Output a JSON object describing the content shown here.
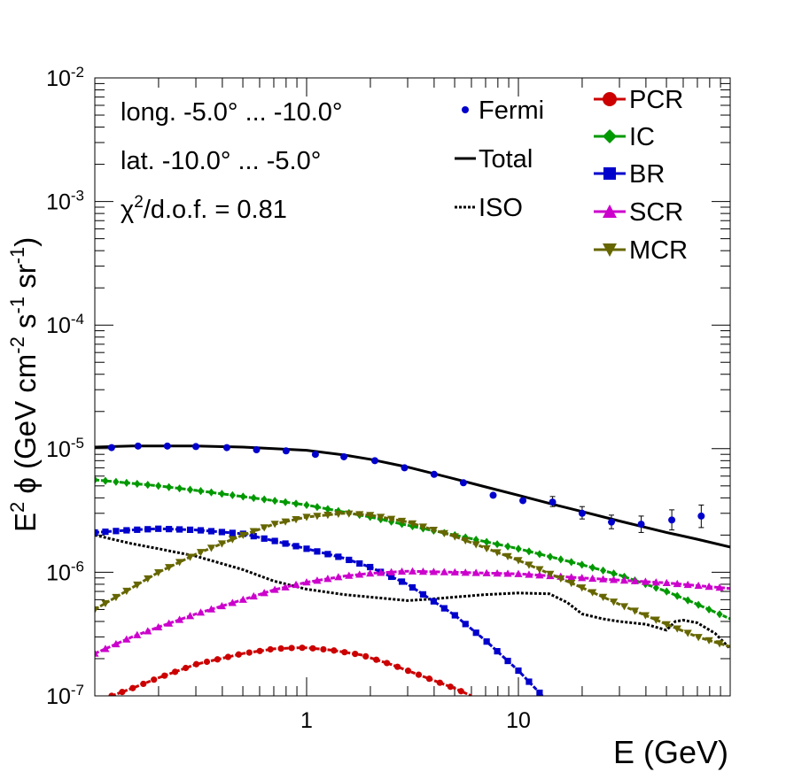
{
  "chart_data": {
    "type": "scatter",
    "title": "",
    "xlabel": "E (GeV)",
    "ylabel_parts": {
      "e": "E",
      "sq": "2",
      "phi": " ϕ (GeV cm",
      "m2": "-2",
      "s": " s",
      "m1a": "-1",
      "sr": " sr",
      "m1b": "-1",
      "close": ")"
    },
    "xscale": "log",
    "yscale": "log",
    "xlim": [
      0.1,
      100
    ],
    "ylim": [
      1e-07,
      0.01
    ],
    "x_ticks": [
      {
        "value": 1,
        "label": "1"
      },
      {
        "value": 10,
        "label": "10"
      }
    ],
    "y_ticks": [
      {
        "value": 1e-07,
        "base": "10",
        "exp": "-7"
      },
      {
        "value": 1e-06,
        "base": "10",
        "exp": "-6"
      },
      {
        "value": 1e-05,
        "base": "10",
        "exp": "-5"
      },
      {
        "value": 0.0001,
        "base": "10",
        "exp": "-4"
      },
      {
        "value": 0.001,
        "base": "10",
        "exp": "-3"
      },
      {
        "value": 0.01,
        "base": "10",
        "exp": "-2"
      }
    ],
    "annotations": {
      "region_long": "long. -5.0° ... -10.0°",
      "region_lat": "lat. -10.0° ... -5.0°",
      "chi_symbol": "χ",
      "chi_exp": "2",
      "chi_rest": "/d.o.f. = 0.81"
    },
    "legend_left": [
      {
        "key": "fermi",
        "label": "Fermi",
        "marker": "dot",
        "color": "#0000cc"
      },
      {
        "key": "total",
        "label": "Total",
        "marker": "solid-line",
        "color": "#000000"
      },
      {
        "key": "iso",
        "label": "ISO",
        "marker": "dotted-line",
        "color": "#000000"
      }
    ],
    "legend_right": [
      {
        "key": "pcr",
        "label": "PCR",
        "marker": "circle",
        "color": "#cc0000"
      },
      {
        "key": "ic",
        "label": "IC",
        "marker": "diamond",
        "color": "#009900"
      },
      {
        "key": "br",
        "label": "BR",
        "marker": "square",
        "color": "#0000cc"
      },
      {
        "key": "scr",
        "label": "SCR",
        "marker": "triangle-up",
        "color": "#cc00cc"
      },
      {
        "key": "mcr",
        "label": "MCR",
        "marker": "triangle-down",
        "color": "#666600"
      }
    ],
    "fermi": {
      "name": "Fermi",
      "color": "#0000cc",
      "points": [
        {
          "x": 0.12,
          "y": 1.02e-05
        },
        {
          "x": 0.16,
          "y": 1.05e-05
        },
        {
          "x": 0.22,
          "y": 1.05e-05
        },
        {
          "x": 0.3,
          "y": 1.04e-05
        },
        {
          "x": 0.42,
          "y": 1.02e-05
        },
        {
          "x": 0.58,
          "y": 9.8e-06
        },
        {
          "x": 0.8,
          "y": 9.6e-06
        },
        {
          "x": 1.1,
          "y": 9e-06
        },
        {
          "x": 1.5,
          "y": 8.6e-06
        },
        {
          "x": 2.1,
          "y": 8e-06
        },
        {
          "x": 2.9,
          "y": 7e-06
        },
        {
          "x": 4.0,
          "y": 6.2e-06
        },
        {
          "x": 5.5,
          "y": 5.3e-06
        },
        {
          "x": 7.6,
          "y": 4.2e-06
        },
        {
          "x": 10.5,
          "y": 3.8e-06
        },
        {
          "x": 14.5,
          "y": 3.7e-06,
          "err": [
            3.4e-06,
            4.1e-06
          ]
        },
        {
          "x": 20,
          "y": 3e-06,
          "err": [
            2.7e-06,
            3.4e-06
          ]
        },
        {
          "x": 27.5,
          "y": 2.55e-06,
          "err": [
            2.25e-06,
            2.9e-06
          ]
        },
        {
          "x": 38,
          "y": 2.45e-06,
          "err": [
            2.1e-06,
            2.85e-06
          ]
        },
        {
          "x": 53,
          "y": 2.65e-06,
          "err": [
            2.2e-06,
            3.2e-06
          ]
        },
        {
          "x": 73,
          "y": 2.85e-06,
          "err": [
            2.3e-06,
            3.5e-06
          ]
        }
      ]
    },
    "series": [
      {
        "key": "total",
        "name": "Total",
        "color": "#000000",
        "style": "solid",
        "marker": "none",
        "x": [
          0.1,
          0.15,
          0.2,
          0.3,
          0.5,
          0.7,
          1,
          1.5,
          2,
          3,
          5,
          7,
          10,
          15,
          20,
          30,
          50,
          70,
          100
        ],
        "y": [
          1.03e-05,
          1.05e-05,
          1.05e-05,
          1.05e-05,
          1.03e-05,
          1e-05,
          9.7e-06,
          8.9e-06,
          8.2e-06,
          7.1e-06,
          5.7e-06,
          4.9e-06,
          4.2e-06,
          3.5e-06,
          3.1e-06,
          2.6e-06,
          2.1e-06,
          1.85e-06,
          1.6e-06
        ]
      },
      {
        "key": "iso",
        "name": "ISO",
        "color": "#000000",
        "style": "dotted",
        "marker": "none",
        "x": [
          0.1,
          0.15,
          0.2,
          0.3,
          0.5,
          0.7,
          1,
          1.5,
          2,
          3,
          4,
          5,
          7,
          10,
          14,
          17,
          20,
          25,
          30,
          40,
          50,
          55,
          60,
          70,
          85,
          100
        ],
        "y": [
          2e-06,
          1.7e-06,
          1.55e-06,
          1.35e-06,
          1.05e-06,
          8.5e-07,
          7.3e-07,
          6.6e-07,
          6.3e-07,
          5.9e-07,
          6.1e-07,
          6.3e-07,
          6.6e-07,
          6.8e-07,
          6.7e-07,
          5.7e-07,
          4.6e-07,
          4.2e-07,
          4e-07,
          3.8e-07,
          3.4e-07,
          4e-07,
          4.1e-07,
          3.9e-07,
          3.2e-07,
          2.4e-07
        ]
      },
      {
        "key": "pcr",
        "name": "PCR",
        "color": "#cc0000",
        "style": "dashed",
        "marker": "circle",
        "x": [
          0.12,
          0.15,
          0.2,
          0.3,
          0.5,
          0.7,
          0.9,
          1.0,
          1.3,
          1.8,
          2.5,
          3.5,
          5.0,
          6.0
        ],
        "y": [
          1e-07,
          1.15e-07,
          1.4e-07,
          1.8e-07,
          2.2e-07,
          2.4e-07,
          2.45e-07,
          2.45e-07,
          2.35e-07,
          2.15e-07,
          1.8e-07,
          1.45e-07,
          1.15e-07,
          1e-07
        ]
      },
      {
        "key": "ic",
        "name": "IC",
        "color": "#009900",
        "style": "dashed",
        "marker": "diamond",
        "x": [
          0.1,
          0.2,
          0.3,
          0.5,
          1,
          2,
          3,
          5,
          10,
          20,
          30,
          50,
          70,
          100
        ],
        "y": [
          5.6e-06,
          5e-06,
          4.6e-06,
          4.1e-06,
          3.5e-06,
          2.8e-06,
          2.4e-06,
          2e-06,
          1.55e-06,
          1.15e-06,
          9.5e-07,
          7e-07,
          5.5e-07,
          4.2e-07
        ]
      },
      {
        "key": "br",
        "name": "BR",
        "color": "#0000cc",
        "style": "dashed",
        "marker": "square",
        "x": [
          0.1,
          0.15,
          0.2,
          0.3,
          0.5,
          0.7,
          1,
          1.5,
          2,
          3,
          5,
          7,
          10,
          13
        ],
        "y": [
          2.1e-06,
          2.2e-06,
          2.25e-06,
          2.2e-06,
          2.05e-06,
          1.8e-06,
          1.55e-06,
          1.3e-06,
          1.1e-06,
          8e-07,
          4.5e-07,
          2.8e-07,
          1.6e-07,
          1e-07
        ]
      },
      {
        "key": "scr",
        "name": "SCR",
        "color": "#cc00cc",
        "style": "dashed",
        "marker": "triangle-up",
        "x": [
          0.1,
          0.15,
          0.2,
          0.3,
          0.5,
          0.7,
          1,
          1.5,
          2,
          3,
          5,
          10,
          20,
          50,
          100
        ],
        "y": [
          2.2e-07,
          3e-07,
          3.6e-07,
          4.6e-07,
          6e-07,
          7.2e-07,
          8.3e-07,
          9.3e-07,
          9.8e-07,
          1.02e-06,
          1e-06,
          9.7e-07,
          9e-07,
          8.2e-07,
          7.4e-07
        ]
      },
      {
        "key": "mcr",
        "name": "MCR",
        "color": "#666600",
        "style": "dashed",
        "marker": "triangle-down",
        "x": [
          0.1,
          0.15,
          0.2,
          0.3,
          0.5,
          0.7,
          1,
          1.5,
          2,
          3,
          5,
          10,
          20,
          30,
          50,
          70,
          100
        ],
        "y": [
          5e-07,
          7.5e-07,
          1e-06,
          1.4e-06,
          2e-06,
          2.45e-06,
          2.8e-06,
          3e-06,
          2.9e-06,
          2.55e-06,
          1.95e-06,
          1.25e-06,
          7.5e-07,
          5.5e-07,
          3.8e-07,
          3e-07,
          2.5e-07
        ]
      }
    ]
  }
}
